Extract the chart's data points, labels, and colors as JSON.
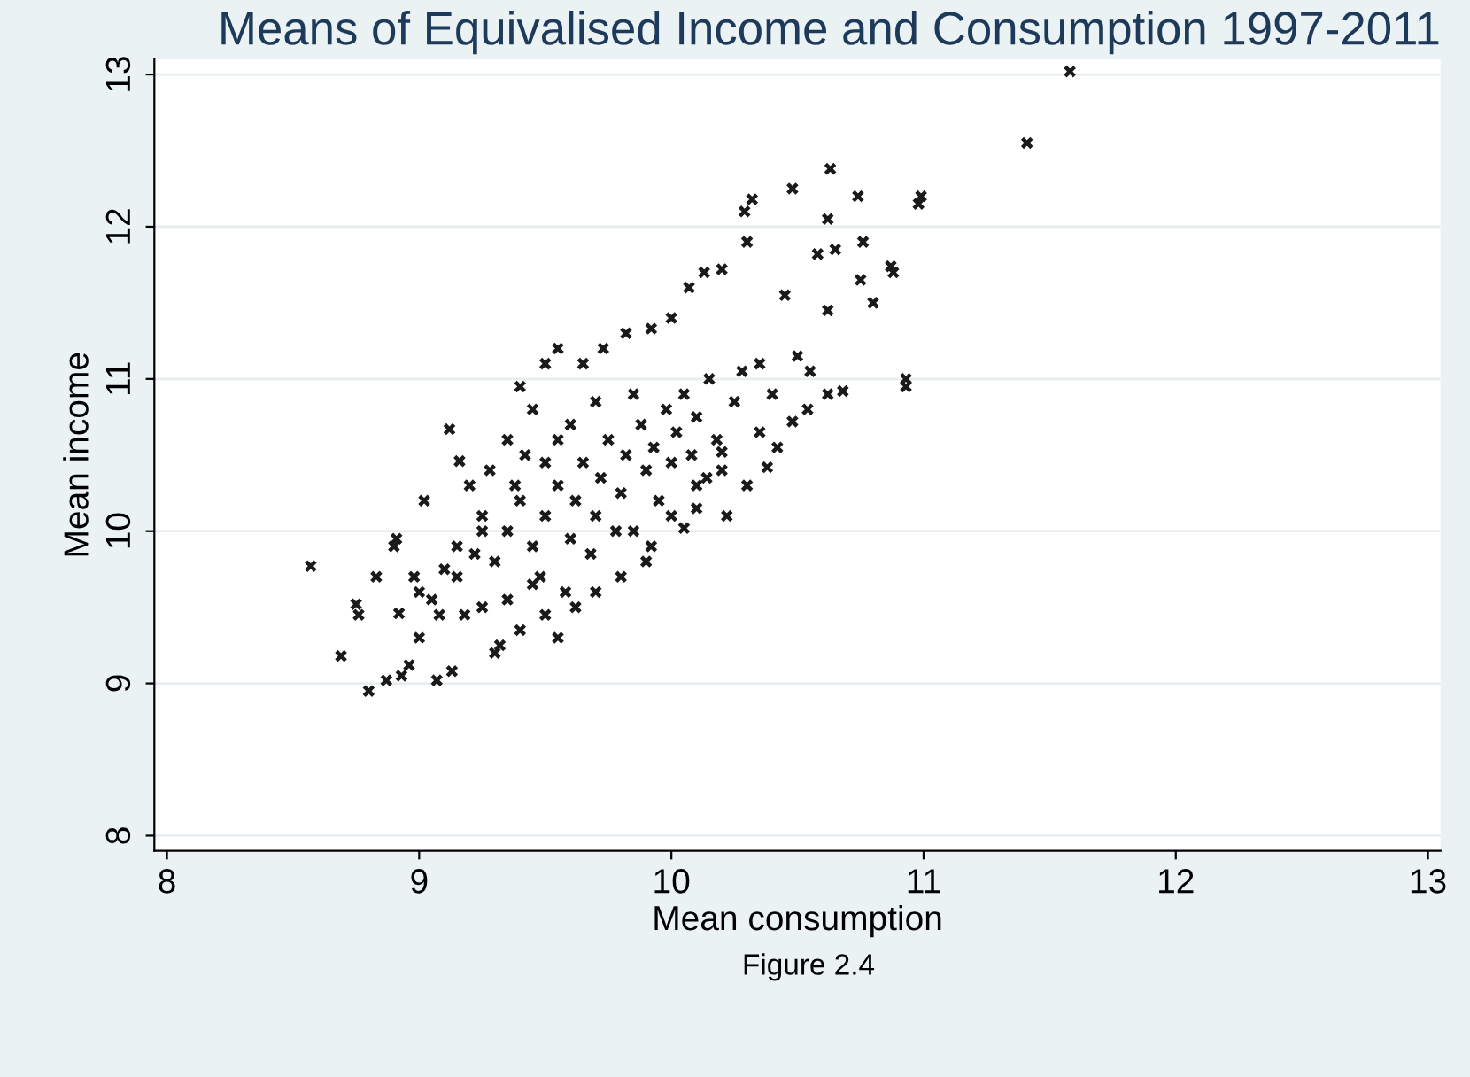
{
  "chart_data": {
    "type": "scatter",
    "title": "Means of Equivalised Income and Consumption 1997-2011",
    "xlabel": "Mean consumption",
    "ylabel": "Mean income",
    "annotations": [
      "Figure 2.4"
    ],
    "marker": "cross",
    "grid": "y",
    "legend": false,
    "xlim": [
      7.95,
      13.05
    ],
    "ylim": [
      7.9,
      13.1
    ],
    "xticks": [
      8,
      9,
      10,
      11,
      12,
      13
    ],
    "yticks": [
      8,
      9,
      10,
      11,
      12,
      13
    ],
    "series": [
      {
        "color": "#1a1a1a",
        "x": [
          11.58,
          11.41,
          10.99,
          10.98,
          10.93,
          10.93,
          8.57,
          8.69,
          8.8,
          8.87,
          8.93,
          9.07,
          8.96,
          9.13,
          9.12,
          9.16,
          9.02,
          8.76,
          8.75,
          8.83,
          8.91,
          8.9,
          9.0,
          8.92,
          9.0,
          10.48,
          10.32,
          10.63,
          10.29,
          10.74,
          10.62,
          10.3,
          10.58,
          10.65,
          10.76,
          10.88,
          10.87,
          10.62,
          10.45,
          10.2,
          10.13,
          10.07,
          10.0,
          9.92,
          9.82,
          9.73,
          9.65,
          9.55,
          9.5,
          9.4,
          9.45,
          9.35,
          9.28,
          9.2,
          9.25,
          10.68,
          10.62,
          10.54,
          10.48,
          10.42,
          10.38,
          10.3,
          10.22,
          10.05,
          10.2,
          10.14,
          10.1,
          10.5,
          10.35,
          10.55,
          10.75,
          10.8,
          9.3,
          9.32,
          9.5,
          9.62,
          9.7,
          9.8,
          9.9,
          9.55,
          9.4,
          9.25,
          9.18,
          9.08,
          9.05,
          9.15,
          9.35,
          9.58,
          9.45,
          9.3,
          9.35,
          9.4,
          9.45,
          9.5,
          9.55,
          9.6,
          9.62,
          9.65,
          9.7,
          9.72,
          9.75,
          9.8,
          9.82,
          9.85,
          9.88,
          9.9,
          9.93,
          9.95,
          9.98,
          10.0,
          10.02,
          10.05,
          10.08,
          10.1,
          10.15,
          10.18,
          10.25,
          10.28,
          9.55,
          9.5,
          9.42,
          9.38,
          9.25,
          9.22,
          9.48,
          9.68,
          9.78,
          9.6,
          9.7,
          9.85,
          10.0,
          9.92,
          10.1,
          10.2,
          10.35,
          10.4,
          9.15,
          9.1,
          8.98
        ],
        "values": [
          13.02,
          12.55,
          12.2,
          12.15,
          11.0,
          10.95,
          9.77,
          9.18,
          8.95,
          9.02,
          9.05,
          9.02,
          9.12,
          9.08,
          10.67,
          10.46,
          10.2,
          9.45,
          9.52,
          9.7,
          9.95,
          9.9,
          9.6,
          9.46,
          9.3,
          12.25,
          12.18,
          12.38,
          12.1,
          12.2,
          12.05,
          11.9,
          11.82,
          11.85,
          11.9,
          11.7,
          11.74,
          11.45,
          11.55,
          11.72,
          11.7,
          11.6,
          11.4,
          11.33,
          11.3,
          11.2,
          11.1,
          11.2,
          11.1,
          10.95,
          10.8,
          10.6,
          10.4,
          10.3,
          10.1,
          10.92,
          10.9,
          10.8,
          10.72,
          10.55,
          10.42,
          10.3,
          10.1,
          10.02,
          10.52,
          10.35,
          10.3,
          11.15,
          11.1,
          11.05,
          11.65,
          11.5,
          9.2,
          9.25,
          9.45,
          9.5,
          9.6,
          9.7,
          9.8,
          9.3,
          9.35,
          9.5,
          9.45,
          9.45,
          9.55,
          9.7,
          9.55,
          9.6,
          9.65,
          9.8,
          10.0,
          10.2,
          9.9,
          10.1,
          10.3,
          9.95,
          10.2,
          10.45,
          10.1,
          10.35,
          10.6,
          10.25,
          10.5,
          10.0,
          10.7,
          10.4,
          10.55,
          10.2,
          10.8,
          10.45,
          10.65,
          10.9,
          10.5,
          10.75,
          11.0,
          10.6,
          10.85,
          11.05,
          10.6,
          10.45,
          10.5,
          10.3,
          10.0,
          9.85,
          9.7,
          9.85,
          10.0,
          10.7,
          10.85,
          10.9,
          10.1,
          9.9,
          10.15,
          10.4,
          10.65,
          10.9,
          9.9,
          9.75,
          9.7
        ]
      }
    ]
  }
}
